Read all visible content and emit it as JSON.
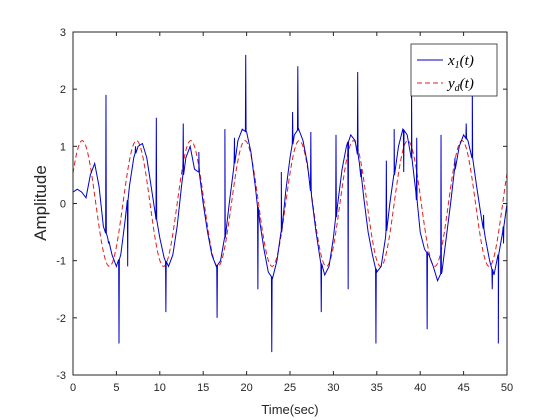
{
  "chart_data": {
    "type": "line",
    "title": "",
    "xlabel": "Time(sec)",
    "ylabel": "Amplitude",
    "xlim": [
      0,
      50
    ],
    "ylim": [
      -3,
      3
    ],
    "xticks": [
      0,
      5,
      10,
      15,
      20,
      25,
      30,
      35,
      40,
      45,
      50
    ],
    "yticks": [
      -3,
      -2,
      -1,
      0,
      1,
      2,
      3
    ],
    "grid": false,
    "legend_position": "top-right",
    "series": [
      {
        "name": "x_1(t)",
        "legend_label": "x1(t)",
        "color": "#0000cc",
        "style": "solid",
        "x": [
          0,
          0.5,
          1,
          1.5,
          2,
          2.5,
          3,
          3.5,
          4,
          4.5,
          5,
          5.5,
          6,
          6.5,
          7,
          7.5,
          8,
          8.5,
          9,
          9.5,
          10,
          10.5,
          11,
          11.5,
          12,
          12.5,
          13,
          13.5,
          14,
          14.5,
          15,
          15.5,
          16,
          16.5,
          17,
          17.5,
          18,
          18.5,
          19,
          19.5,
          20,
          20.5,
          21,
          21.5,
          22,
          22.5,
          23,
          23.5,
          24,
          24.5,
          25,
          25.5,
          26,
          26.5,
          27,
          27.5,
          28,
          28.5,
          29,
          29.5,
          30,
          30.5,
          31,
          31.5,
          32,
          32.5,
          33,
          33.5,
          34,
          34.5,
          35,
          35.5,
          36,
          36.5,
          37,
          37.5,
          38,
          38.5,
          39,
          39.5,
          40,
          40.5,
          41,
          41.5,
          42,
          42.5,
          43,
          43.5,
          44,
          44.5,
          45,
          45.5,
          46,
          46.5,
          47,
          47.5,
          48,
          48.5,
          49,
          49.5,
          50
        ],
        "y": [
          0.2,
          0.25,
          0.2,
          0.1,
          0.5,
          0.7,
          0.3,
          -0.4,
          -0.6,
          -0.9,
          -1.1,
          -0.9,
          -0.3,
          0.3,
          0.8,
          1.0,
          1.05,
          0.8,
          0.3,
          -0.2,
          -0.6,
          -0.95,
          -1.1,
          -0.9,
          -0.4,
          0.3,
          0.8,
          1.0,
          0.6,
          0.55,
          0.0,
          -0.5,
          -0.9,
          -1.1,
          -1.0,
          -0.6,
          0.0,
          0.6,
          1.1,
          1.3,
          1.25,
          0.9,
          0.3,
          -0.3,
          -0.8,
          -1.2,
          -1.3,
          -1.0,
          -0.5,
          0.2,
          0.8,
          1.2,
          1.3,
          1.1,
          0.7,
          0.1,
          -0.5,
          -1.0,
          -1.25,
          -1.1,
          -0.6,
          0.0,
          0.6,
          1.0,
          1.2,
          1.1,
          0.7,
          0.1,
          -0.5,
          -0.9,
          -1.2,
          -1.1,
          -0.6,
          0.0,
          0.5,
          1.0,
          1.3,
          1.2,
          0.8,
          0.2,
          -0.5,
          -0.8,
          -0.9,
          -1.1,
          -1.35,
          -1.2,
          -0.6,
          0.0,
          0.6,
          1.0,
          1.2,
          1.1,
          0.8,
          0.3,
          -0.2,
          -0.6,
          -1.0,
          -1.25,
          -0.9,
          -0.5,
          0.0
        ],
        "spikes": [
          {
            "x": 3.8,
            "y": 1.9
          },
          {
            "x": 4.1,
            "y": -0.7
          },
          {
            "x": 5.3,
            "y": -2.45
          },
          {
            "x": 6.3,
            "y": -1.1
          },
          {
            "x": 7.2,
            "y": 1.0
          },
          {
            "x": 9.6,
            "y": 1.5
          },
          {
            "x": 10.7,
            "y": -1.9
          },
          {
            "x": 12.7,
            "y": 1.4
          },
          {
            "x": 14.5,
            "y": 0.9
          },
          {
            "x": 16.6,
            "y": -2.0
          },
          {
            "x": 17.5,
            "y": 1.3
          },
          {
            "x": 18.6,
            "y": 1.15
          },
          {
            "x": 19.9,
            "y": 2.6
          },
          {
            "x": 21.3,
            "y": -1.5
          },
          {
            "x": 22.9,
            "y": -2.6
          },
          {
            "x": 24.0,
            "y": 0.55
          },
          {
            "x": 25.3,
            "y": 1.6
          },
          {
            "x": 25.9,
            "y": 2.4
          },
          {
            "x": 27.4,
            "y": 1.25
          },
          {
            "x": 28.6,
            "y": -1.9
          },
          {
            "x": 30.3,
            "y": 1.2
          },
          {
            "x": 31.7,
            "y": -1.5
          },
          {
            "x": 32.8,
            "y": 2.3
          },
          {
            "x": 33.2,
            "y": 0.6
          },
          {
            "x": 34.9,
            "y": -2.45
          },
          {
            "x": 36.1,
            "y": 0.75
          },
          {
            "x": 37.0,
            "y": 1.3
          },
          {
            "x": 38.1,
            "y": 0.55
          },
          {
            "x": 39.0,
            "y": 2.2
          },
          {
            "x": 39.6,
            "y": 1.15
          },
          {
            "x": 40.8,
            "y": -2.2
          },
          {
            "x": 42.4,
            "y": 1.2
          },
          {
            "x": 44.0,
            "y": 0.8
          },
          {
            "x": 45.3,
            "y": 1.4
          },
          {
            "x": 46.0,
            "y": 2.3
          },
          {
            "x": 47.3,
            "y": -0.2
          },
          {
            "x": 48.3,
            "y": -1.5
          },
          {
            "x": 49.0,
            "y": -2.45
          },
          {
            "x": 49.6,
            "y": -0.7
          }
        ]
      },
      {
        "name": "y_d(t)",
        "legend_label": "yd(t)",
        "color": "#e0201c",
        "style": "dashed",
        "function": "1.1*sin(2*pi*t/6.25 + 0.5)",
        "x_range": [
          0,
          50
        ]
      }
    ]
  }
}
